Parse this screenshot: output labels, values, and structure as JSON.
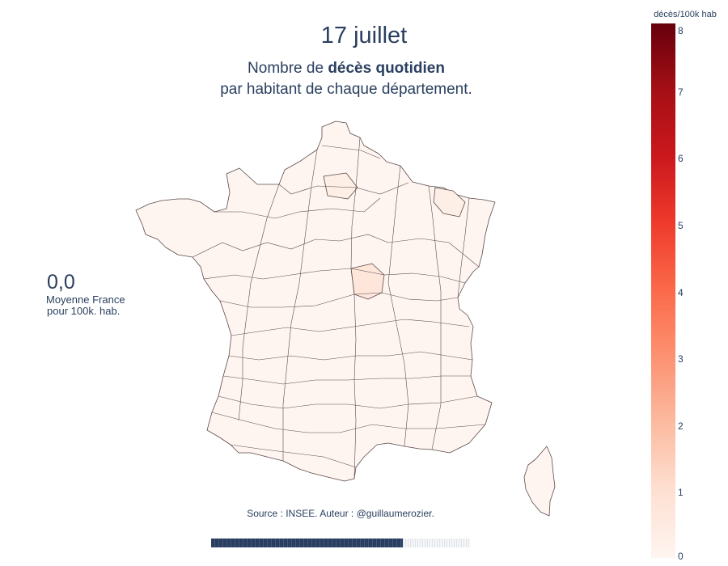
{
  "title": "17 juillet",
  "subtitle": {
    "prefix": "Nombre de ",
    "bold": "décès quotidien",
    "line2": "par habitant de chaque département."
  },
  "national_average": {
    "value": "0,0",
    "label_line1": "Moyenne France",
    "label_line2": "pour 100k. hab."
  },
  "source": "Source : INSEE. Auteur : @guillaumerozier.",
  "animation_progress": 0.74,
  "colorbar": {
    "title": "décès/100k hab",
    "ticks": [
      "0",
      "1",
      "2",
      "3",
      "4",
      "5",
      "6",
      "7",
      "8"
    ],
    "range": [
      0,
      8
    ],
    "colorscale": "Reds"
  },
  "map": {
    "region": "France métropolitaine",
    "fill_color": "#fff5f0",
    "border_color": "#5a4a4a",
    "highlighted_fill": "#fee6da"
  }
}
